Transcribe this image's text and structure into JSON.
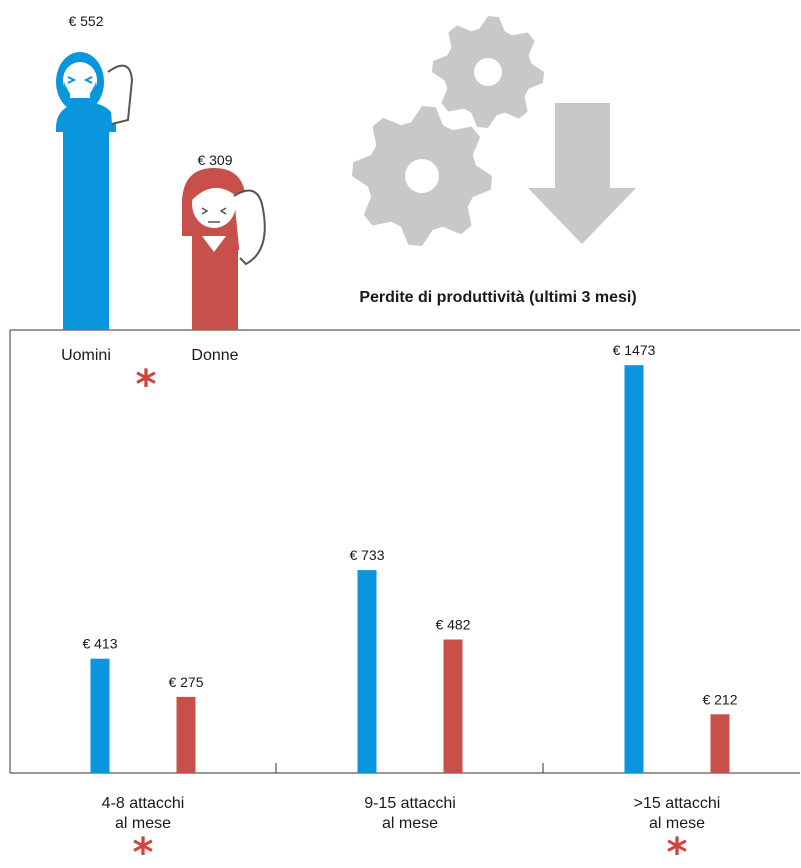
{
  "colors": {
    "men": "#0a96dc",
    "women": "#c8504b",
    "icon_gray": "#c8c8c8",
    "star": "#d0463f"
  },
  "chart_data": [
    {
      "type": "bar",
      "title": "Perdite di produttività (ultimi 3 mesi)",
      "categories": [
        "Uomini",
        "Donne"
      ],
      "values": [
        552,
        309
      ],
      "value_labels": [
        "€ 552",
        "€ 309"
      ],
      "significance_marker": "*"
    },
    {
      "type": "bar",
      "categories": [
        [
          "4-8 attacchi",
          "al mese"
        ],
        [
          "9-15 attacchi",
          "al mese"
        ],
        [
          ">15 attacchi",
          "al mese"
        ]
      ],
      "series": [
        {
          "values": [
            413,
            733,
            1473
          ],
          "value_labels": [
            "€ 413",
            "€ 733",
            "€ 1473"
          ],
          "color": "#0a96dc"
        },
        {
          "values": [
            275,
            482,
            212
          ],
          "value_labels": [
            "€ 275",
            "€ 482",
            "€ 212"
          ],
          "color": "#c8504b"
        }
      ],
      "ylim": [
        0,
        1600
      ],
      "significance_markers": [
        "*",
        "",
        "*"
      ]
    }
  ],
  "icons": [
    "man-holding-head-icon",
    "woman-holding-head-icon",
    "gears-icon",
    "down-arrow-icon"
  ]
}
